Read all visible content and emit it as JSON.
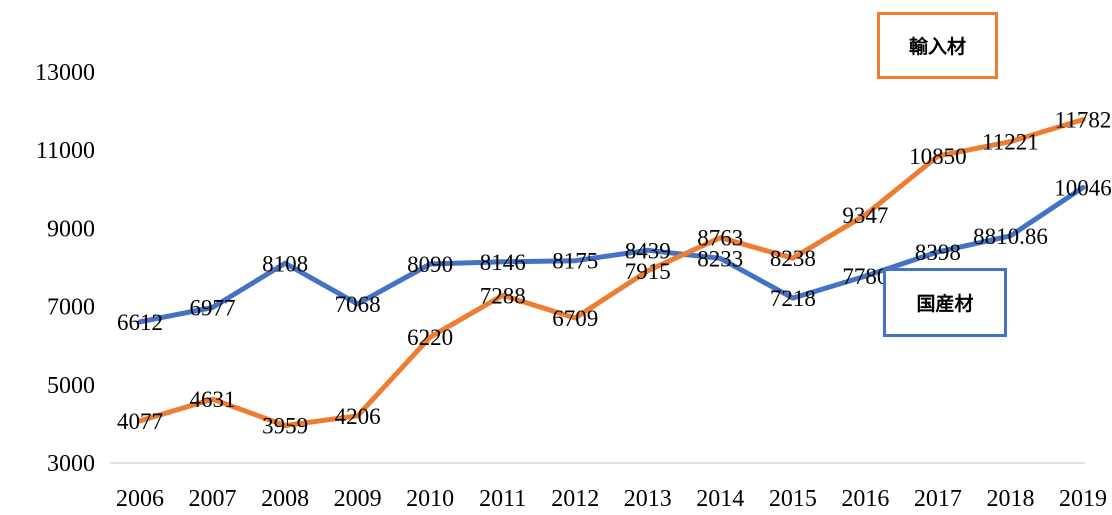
{
  "chart_data": {
    "type": "line",
    "x": [
      "2006",
      "2007",
      "2008",
      "2009",
      "2010",
      "2011",
      "2012",
      "2013",
      "2014",
      "2015",
      "2016",
      "2017",
      "2018",
      "2019"
    ],
    "ylim": [
      3000,
      13000
    ],
    "yticks": [
      "3000",
      "5000",
      "7000",
      "9000",
      "11000",
      "13000"
    ],
    "grid": false,
    "series": [
      {
        "name": "国産材",
        "color": "#4472C4",
        "values": [
          6612,
          6977,
          8108,
          7068,
          8090,
          8146,
          8175,
          8439,
          8233,
          7218,
          7780,
          8398,
          8810.86,
          10046
        ],
        "labels": [
          "6612",
          "6977",
          "8108",
          "7068",
          "8090",
          "8146",
          "8175",
          "8439",
          "8233",
          "7218",
          "7780",
          "8398",
          "8810.86",
          "10046"
        ]
      },
      {
        "name": "輸入材",
        "color": "#ED7D31",
        "values": [
          4077,
          4631,
          3959,
          4206,
          6220,
          7288,
          6709,
          7915,
          8763,
          8238,
          9347,
          10850,
          11221,
          11782
        ],
        "labels": [
          "4077",
          "4631",
          "3959",
          "4206",
          "6220",
          "7288",
          "6709",
          "7915",
          "8763",
          "8238",
          "9347",
          "10850",
          "11221",
          "11782"
        ]
      }
    ]
  },
  "legend": {
    "import_label": "輸入材",
    "domestic_label": "国産材"
  }
}
